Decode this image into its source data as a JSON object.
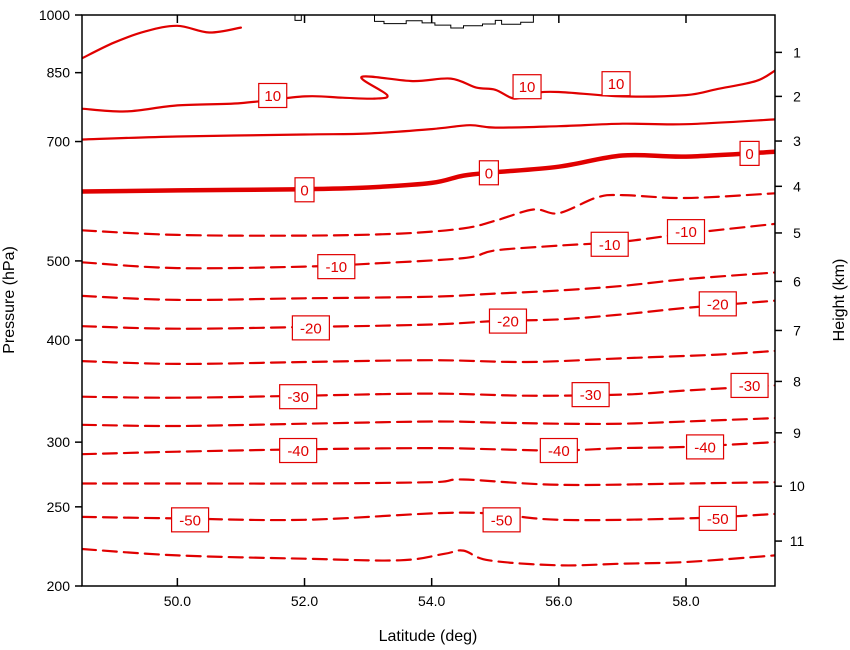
{
  "chart_data": {
    "type": "line",
    "title": "",
    "xlabel": "Latitude (deg)",
    "ylabel": "Pressure (hPa)",
    "y2label": "Height (km)",
    "xlim": [
      48.5,
      59.4
    ],
    "x_ticks": [
      {
        "value": 50,
        "label": "50.0"
      },
      {
        "value": 52,
        "label": "52.0"
      },
      {
        "value": 54,
        "label": "54.0"
      },
      {
        "value": 56,
        "label": "56.0"
      },
      {
        "value": 58,
        "label": "58.0"
      }
    ],
    "y_scale": "log",
    "ylim": [
      1000,
      200
    ],
    "y_ticks": [
      {
        "value": 200,
        "label": "200"
      },
      {
        "value": 250,
        "label": "250"
      },
      {
        "value": 300,
        "label": "300"
      },
      {
        "value": 400,
        "label": "400"
      },
      {
        "value": 500,
        "label": "500"
      },
      {
        "value": 700,
        "label": "700"
      },
      {
        "value": 850,
        "label": "850"
      },
      {
        "value": 1000,
        "label": "1000"
      }
    ],
    "y2_ticks": [
      {
        "pressure": 900,
        "label": "1"
      },
      {
        "pressure": 795,
        "label": "2"
      },
      {
        "pressure": 701,
        "label": "3"
      },
      {
        "pressure": 617,
        "label": "4"
      },
      {
        "pressure": 541,
        "label": "5"
      },
      {
        "pressure": 472,
        "label": "6"
      },
      {
        "pressure": 411,
        "label": "7"
      },
      {
        "pressure": 356,
        "label": "8"
      },
      {
        "pressure": 308,
        "label": "9"
      },
      {
        "pressure": 265,
        "label": "10"
      },
      {
        "pressure": 227,
        "label": "11"
      }
    ],
    "line_color": "#e00000",
    "contour_interval": 5,
    "series": [
      {
        "level": -55,
        "points": [
          [
            48.5,
            222
          ],
          [
            50,
            218
          ],
          [
            52,
            216
          ],
          [
            53.5,
            215
          ],
          [
            54.2,
            219
          ],
          [
            54.5,
            221
          ],
          [
            54.9,
            215
          ],
          [
            56,
            212
          ],
          [
            57,
            213
          ],
          [
            58,
            214
          ],
          [
            59.4,
            218
          ]
        ]
      },
      {
        "level": -50,
        "points": [
          [
            48.5,
            243
          ],
          [
            50,
            242
          ],
          [
            52,
            241
          ],
          [
            54.5,
            246
          ],
          [
            56,
            241
          ],
          [
            58,
            242
          ],
          [
            59.4,
            245
          ]
        ]
      },
      {
        "level": -45,
        "points": [
          [
            48.5,
            267
          ],
          [
            50,
            267
          ],
          [
            52,
            267
          ],
          [
            54,
            268
          ],
          [
            54.5,
            270
          ],
          [
            56,
            266
          ],
          [
            58,
            267
          ],
          [
            59.4,
            268
          ]
        ]
      },
      {
        "level": -40,
        "points": [
          [
            48.5,
            290
          ],
          [
            50,
            292
          ],
          [
            52,
            294
          ],
          [
            54,
            295
          ],
          [
            55,
            294
          ],
          [
            56,
            293
          ],
          [
            57,
            295
          ],
          [
            58,
            296
          ],
          [
            59.4,
            300
          ]
        ]
      },
      {
        "level": -35,
        "points": [
          [
            48.5,
            315
          ],
          [
            50,
            314
          ],
          [
            52,
            316
          ],
          [
            54,
            318
          ],
          [
            55,
            317
          ],
          [
            56,
            316
          ],
          [
            57,
            316
          ],
          [
            58,
            318
          ],
          [
            59.4,
            321
          ]
        ]
      },
      {
        "level": -30,
        "points": [
          [
            48.5,
            341
          ],
          [
            50,
            340
          ],
          [
            52,
            342
          ],
          [
            54,
            344
          ],
          [
            55.5,
            342
          ],
          [
            57,
            343
          ],
          [
            58,
            347
          ],
          [
            59.4,
            352
          ]
        ]
      },
      {
        "level": -25,
        "points": [
          [
            48.5,
            377
          ],
          [
            50,
            374
          ],
          [
            52,
            376
          ],
          [
            54,
            378
          ],
          [
            55.5,
            376
          ],
          [
            57,
            380
          ],
          [
            58.5,
            384
          ],
          [
            59.4,
            388
          ]
        ]
      },
      {
        "level": -20,
        "points": [
          [
            48.5,
            416
          ],
          [
            50,
            413
          ],
          [
            52,
            415
          ],
          [
            54,
            418
          ],
          [
            55,
            422
          ],
          [
            56,
            424
          ],
          [
            57,
            430
          ],
          [
            58,
            438
          ],
          [
            59.4,
            447
          ]
        ]
      },
      {
        "level": -15,
        "points": [
          [
            48.5,
            453
          ],
          [
            50,
            448
          ],
          [
            52,
            450
          ],
          [
            54,
            452
          ],
          [
            55,
            456
          ],
          [
            56,
            460
          ],
          [
            57,
            466
          ],
          [
            58,
            475
          ],
          [
            59.4,
            484
          ]
        ]
      },
      {
        "level": -10,
        "points": [
          [
            48.5,
            498
          ],
          [
            50,
            490
          ],
          [
            52,
            492
          ],
          [
            53,
            496
          ],
          [
            54.5,
            504
          ],
          [
            55,
            515
          ],
          [
            56,
            522
          ],
          [
            57,
            528
          ],
          [
            58,
            540
          ],
          [
            59.4,
            555
          ]
        ]
      },
      {
        "level": -5,
        "points": [
          [
            48.5,
            545
          ],
          [
            50,
            538
          ],
          [
            52,
            537
          ],
          [
            53.5,
            540
          ],
          [
            54.5,
            548
          ],
          [
            55,
            560
          ],
          [
            55.6,
            578
          ],
          [
            56,
            572
          ],
          [
            56.6,
            598
          ],
          [
            57,
            602
          ],
          [
            58,
            597
          ],
          [
            59.4,
            605
          ]
        ]
      },
      {
        "level": 0,
        "thick": true,
        "points": [
          [
            48.5,
            608
          ],
          [
            50,
            610
          ],
          [
            52,
            612
          ],
          [
            53,
            615
          ],
          [
            54,
            623
          ],
          [
            54.5,
            636
          ],
          [
            55,
            642
          ],
          [
            56,
            652
          ],
          [
            57,
            673
          ],
          [
            58,
            671
          ],
          [
            59.4,
            680
          ]
        ]
      },
      {
        "level": 5,
        "points": [
          [
            48.5,
            704
          ],
          [
            50,
            710
          ],
          [
            52,
            714
          ],
          [
            53,
            716
          ],
          [
            54,
            725
          ],
          [
            54.6,
            733
          ],
          [
            55,
            728
          ],
          [
            56,
            731
          ],
          [
            57,
            736
          ],
          [
            58,
            735
          ],
          [
            59.4,
            745
          ]
        ]
      },
      {
        "level": 10,
        "points": [
          [
            48.5,
            768
          ],
          [
            49.2,
            762
          ],
          [
            50,
            775
          ],
          [
            51,
            780
          ],
          [
            52,
            795
          ],
          [
            52.6,
            792
          ],
          [
            53.1,
            790
          ],
          [
            53.3,
            798
          ],
          [
            52.9,
            840
          ],
          [
            53.7,
            830
          ],
          [
            54.3,
            836
          ],
          [
            54.7,
            815
          ],
          [
            55,
            810
          ],
          [
            55.3,
            790
          ],
          [
            55.6,
            802
          ],
          [
            56,
            805
          ],
          [
            57,
            795
          ],
          [
            58,
            798
          ],
          [
            58.5,
            812
          ],
          [
            59.1,
            830
          ],
          [
            59.4,
            855
          ]
        ]
      },
      {
        "level": 15,
        "points": [
          [
            48.5,
            885
          ],
          [
            49,
            925
          ],
          [
            49.5,
            955
          ],
          [
            50,
            970
          ],
          [
            50.5,
            952
          ],
          [
            51,
            965
          ]
        ]
      }
    ],
    "annotations": [
      {
        "text": "-50",
        "x": 50.2,
        "p": 241
      },
      {
        "text": "-50",
        "x": 55.1,
        "p": 241
      },
      {
        "text": "-50",
        "x": 58.5,
        "p": 242
      },
      {
        "text": "-40",
        "x": 51.9,
        "p": 293
      },
      {
        "text": "-40",
        "x": 56.0,
        "p": 293
      },
      {
        "text": "-40",
        "x": 58.3,
        "p": 296
      },
      {
        "text": "-30",
        "x": 51.9,
        "p": 341
      },
      {
        "text": "-30",
        "x": 56.5,
        "p": 343
      },
      {
        "text": "-30",
        "x": 59.0,
        "p": 352
      },
      {
        "text": "-20",
        "x": 52.1,
        "p": 414
      },
      {
        "text": "-20",
        "x": 55.2,
        "p": 422
      },
      {
        "text": "-20",
        "x": 58.5,
        "p": 443
      },
      {
        "text": "-10",
        "x": 52.5,
        "p": 492
      },
      {
        "text": "-10",
        "x": 56.8,
        "p": 524
      },
      {
        "text": "-10",
        "x": 58.0,
        "p": 543
      },
      {
        "text": "0",
        "x": 52.0,
        "p": 611
      },
      {
        "text": "0",
        "x": 54.9,
        "p": 641
      },
      {
        "text": "0",
        "x": 59.0,
        "p": 677
      },
      {
        "text": "10",
        "x": 51.5,
        "p": 797
      },
      {
        "text": "10",
        "x": 55.5,
        "p": 817
      },
      {
        "text": "10",
        "x": 56.9,
        "p": 824
      }
    ],
    "terrain": {
      "color": "#000000",
      "points": [
        [
          51.85,
          1000
        ],
        [
          51.85,
          985
        ],
        [
          51.95,
          985
        ],
        [
          51.95,
          1000
        ],
        [
          53.1,
          1000
        ],
        [
          53.1,
          982
        ],
        [
          53.25,
          982
        ],
        [
          53.25,
          976
        ],
        [
          53.6,
          976
        ],
        [
          53.6,
          984
        ],
        [
          53.85,
          984
        ],
        [
          53.85,
          978
        ],
        [
          54.05,
          978
        ],
        [
          54.05,
          972
        ],
        [
          54.3,
          972
        ],
        [
          54.3,
          964
        ],
        [
          54.5,
          964
        ],
        [
          54.5,
          970
        ],
        [
          54.8,
          970
        ],
        [
          54.8,
          975
        ],
        [
          55.0,
          975
        ],
        [
          55.0,
          985
        ],
        [
          55.1,
          985
        ],
        [
          55.1,
          974
        ],
        [
          55.4,
          974
        ],
        [
          55.4,
          980
        ],
        [
          55.6,
          980
        ],
        [
          55.6,
          1000
        ]
      ]
    }
  }
}
